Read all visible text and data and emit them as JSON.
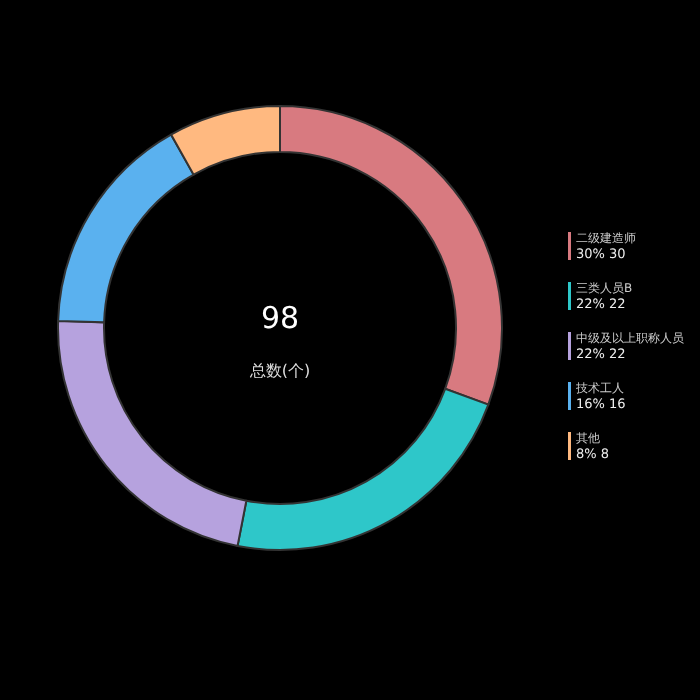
{
  "chart_data": {
    "type": "donut",
    "categories": [
      "二级建造师",
      "三类人员B",
      "中级及以上职称人员",
      "技术工人",
      "其他"
    ],
    "values": [
      30,
      22,
      22,
      16,
      8
    ],
    "value_labels": [
      "30% 30",
      "22% 22",
      "22% 22",
      "16% 16",
      "8% 8"
    ],
    "colors": [
      "#d87a80",
      "#2ec7c9",
      "#b6a2de",
      "#5ab1ef",
      "#ffb980"
    ],
    "annotations": [
      "98",
      "总数(个)"
    ],
    "legend": "right"
  }
}
